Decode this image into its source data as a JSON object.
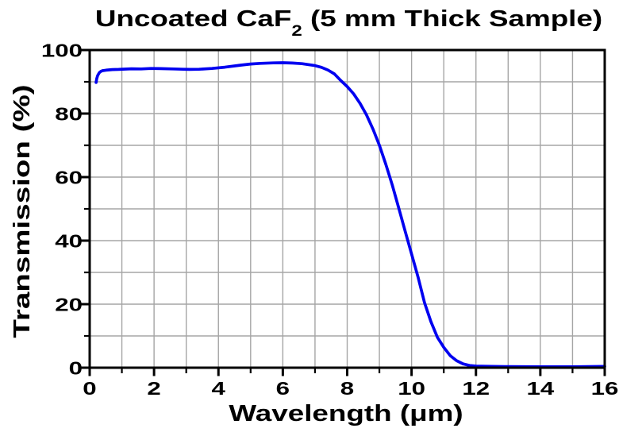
{
  "title": {
    "prefix": "Uncoated CaF",
    "subscript": "2",
    "suffix": " (5 mm Thick Sample)"
  },
  "chart_data": {
    "type": "line",
    "title": "Uncoated CaF2 (5 mm Thick Sample)",
    "xlabel": "Wavelength (μm)",
    "ylabel": "Transmission (%)",
    "xlim": [
      0,
      16
    ],
    "ylim": [
      0,
      100
    ],
    "x_major_ticks": [
      0,
      2,
      4,
      6,
      8,
      10,
      12,
      14,
      16
    ],
    "x_minor_step": 1,
    "y_major_ticks": [
      0,
      20,
      40,
      60,
      80,
      100
    ],
    "y_minor_step": 10,
    "grid": "minor",
    "grid_color": "#a5a5a5",
    "axis_color": "#000000",
    "line_color": "#0000f0",
    "series": [
      {
        "name": "transmission",
        "points": [
          [
            0.2,
            89.8
          ],
          [
            0.22,
            91.0
          ],
          [
            0.25,
            92.0
          ],
          [
            0.3,
            92.9
          ],
          [
            0.35,
            93.3
          ],
          [
            0.4,
            93.5
          ],
          [
            0.5,
            93.65
          ],
          [
            0.6,
            93.75
          ],
          [
            0.7,
            93.85
          ],
          [
            0.9,
            93.9
          ],
          [
            1.1,
            94.0
          ],
          [
            1.3,
            94.1
          ],
          [
            1.6,
            94.05
          ],
          [
            1.9,
            94.2
          ],
          [
            2.2,
            94.15
          ],
          [
            2.6,
            94.05
          ],
          [
            2.9,
            93.95
          ],
          [
            3.1,
            93.9
          ],
          [
            3.4,
            93.95
          ],
          [
            3.8,
            94.2
          ],
          [
            4.2,
            94.6
          ],
          [
            4.7,
            95.25
          ],
          [
            5.0,
            95.6
          ],
          [
            5.3,
            95.8
          ],
          [
            5.7,
            95.95
          ],
          [
            6.0,
            96.0
          ],
          [
            6.3,
            95.9
          ],
          [
            6.6,
            95.7
          ],
          [
            7.0,
            95.1
          ],
          [
            7.2,
            94.55
          ],
          [
            7.4,
            93.7
          ],
          [
            7.6,
            92.5
          ],
          [
            7.8,
            90.4
          ],
          [
            8.0,
            88.5
          ],
          [
            8.2,
            86.2
          ],
          [
            8.4,
            83.2
          ],
          [
            8.6,
            79.6
          ],
          [
            8.8,
            75.1
          ],
          [
            9.0,
            70.0
          ],
          [
            9.2,
            64.0
          ],
          [
            9.3,
            60.8
          ],
          [
            9.4,
            57.5
          ],
          [
            9.6,
            50.3
          ],
          [
            9.8,
            43.0
          ],
          [
            10.0,
            35.8
          ],
          [
            10.2,
            28.6
          ],
          [
            10.4,
            20.5
          ],
          [
            10.6,
            14.5
          ],
          [
            10.8,
            9.6
          ],
          [
            11.0,
            6.4
          ],
          [
            11.2,
            3.8
          ],
          [
            11.4,
            2.2
          ],
          [
            11.6,
            1.2
          ],
          [
            11.8,
            0.7
          ],
          [
            12.0,
            0.5
          ],
          [
            12.5,
            0.4
          ],
          [
            13.0,
            0.35
          ],
          [
            14.0,
            0.3
          ],
          [
            15.0,
            0.3
          ],
          [
            16.0,
            0.4
          ]
        ]
      }
    ]
  }
}
